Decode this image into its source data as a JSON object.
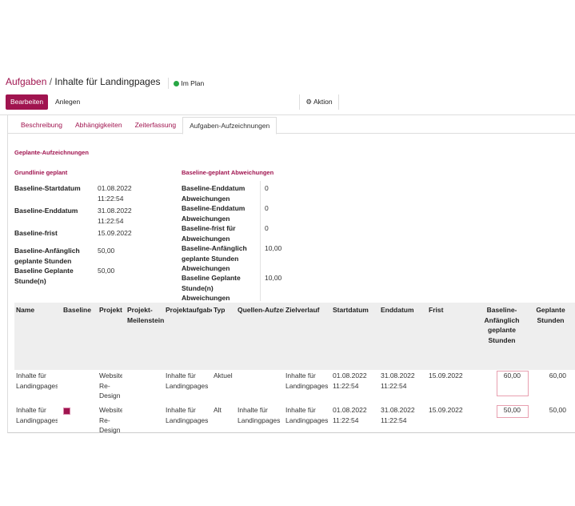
{
  "breadcrumb": {
    "parent": "Aufgaben",
    "current": "Inhalte für Landingpages",
    "status": "Im Plan"
  },
  "buttons": {
    "edit": "Bearbeiten",
    "create": "Anlegen",
    "action": "Aktion"
  },
  "tabs": [
    "Beschreibung",
    "Abhängigkeiten",
    "Zeiterfassung",
    "Aufgaben-Aufzeichnungen"
  ],
  "active_tab": 3,
  "section_title": "Geplante-Aufzeichnungen",
  "baseline": {
    "title": "Grundlinie geplant",
    "fields": [
      {
        "label": "Baseline-Startdatum",
        "value": "01.08.2022 11:22:54"
      },
      {
        "label": "Baseline-Enddatum",
        "value": "31.08.2022 11:22:54"
      },
      {
        "label": "Baseline-frist",
        "value": "15.09.2022"
      },
      {
        "label": "Baseline-Anfänglich geplante Stunden",
        "value": "50,00"
      },
      {
        "label": "Baseline Geplante Stunde(n)",
        "value": "50,00"
      }
    ]
  },
  "deviations": {
    "title": "Baseline-geplant Abweichungen",
    "fields": [
      {
        "label": "Baseline-Enddatum Abweichungen",
        "value": "0"
      },
      {
        "label": "Baseline-Enddatum Abweichungen",
        "value": "0"
      },
      {
        "label": "Baseline-frist für Abweichungen",
        "value": "0"
      },
      {
        "label": "Baseline-Anfänglich geplante Stunden Abweichungen",
        "value": "10,00"
      },
      {
        "label": "Baseline Geplante Stunde(n) Abweichungen",
        "value": "10,00"
      }
    ]
  },
  "table": {
    "columns": [
      "Name",
      "Baseline",
      "Projekt",
      "Projekt-Meilenstein",
      "Projektaufgabe",
      "Typ",
      "Quellen-Aufzeichnungen",
      "Zielverlauf",
      "Startdatum",
      "Enddatum",
      "Frist",
      "Baseline-Anfänglich geplante Stunden",
      "Geplante Stunden"
    ],
    "rows": [
      [
        "Inhalte für Landingpages",
        false,
        "Website Re-Design",
        null,
        "Inhalte für Landingpages",
        "Aktuell",
        null,
        "Inhalte für Landingpages",
        "01.08.2022 11:22:54",
        "31.08.2022 11:22:54",
        "15.09.2022",
        "60,00",
        "60,00"
      ],
      [
        "Inhalte für Landingpages",
        true,
        "Website Re-Design",
        null,
        "Inhalte für Landingpages",
        "Alt",
        "Inhalte für Landingpages",
        "Inhalte für Landingpages",
        "01.08.2022 11:22:54",
        "31.08.2022 11:22:54",
        "15.09.2022",
        "50,00",
        "50,00"
      ]
    ]
  }
}
